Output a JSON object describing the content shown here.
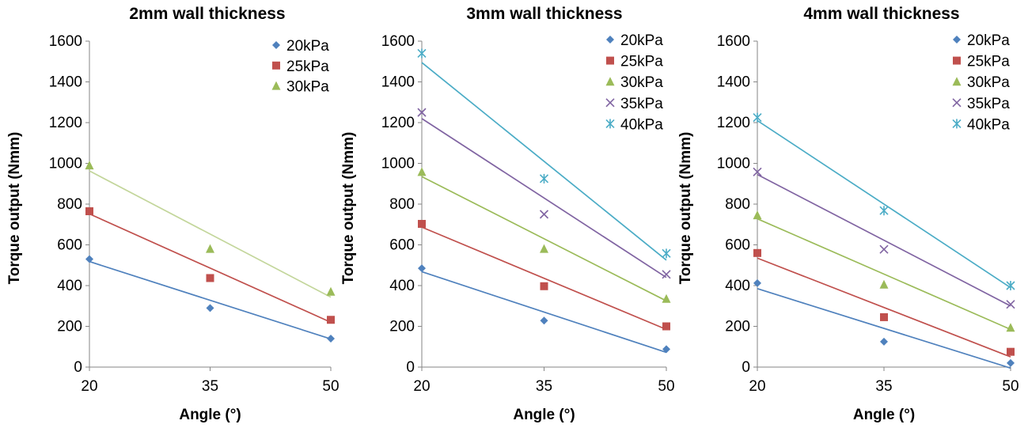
{
  "chart_data": [
    {
      "type": "scatter",
      "title": "2mm wall thickness",
      "xlabel": "Angle (°)",
      "ylabel": "Torque output (Nmm)",
      "x": [
        20,
        35,
        50
      ],
      "xticks": [
        "20",
        "35",
        "50"
      ],
      "xlim": [
        20,
        50
      ],
      "ylim": [
        0,
        1600
      ],
      "yticks": [
        "0",
        "200",
        "400",
        "600",
        "800",
        "1000",
        "1200",
        "1400",
        "1600"
      ],
      "grid": false,
      "legend": "top-right",
      "trendlines": true,
      "series": [
        {
          "name": "20kPa",
          "values": [
            530,
            290,
            140
          ],
          "color": "#4F81BD",
          "marker": "diamond",
          "trend": [
            518,
            328,
            138
          ],
          "trend_color": "#4F81BD"
        },
        {
          "name": "25kPa",
          "values": [
            765,
            437,
            232
          ],
          "color": "#C0504D",
          "marker": "square",
          "trend": [
            752,
            486,
            220
          ],
          "trend_color": "#C0504D"
        },
        {
          "name": "30kPa",
          "values": [
            990,
            580,
            370
          ],
          "color": "#9BBB59",
          "marker": "triangle",
          "trend": [
            963,
            653,
            343
          ],
          "trend_color": "#C3D69B"
        }
      ]
    },
    {
      "type": "scatter",
      "title": "3mm wall thickness",
      "xlabel": "Angle (°)",
      "ylabel": "Torque output (Nmm)",
      "x": [
        20,
        35,
        50
      ],
      "xticks": [
        "20",
        "35",
        "50"
      ],
      "xlim": [
        20,
        50
      ],
      "ylim": [
        0,
        1600
      ],
      "yticks": [
        "0",
        "200",
        "400",
        "600",
        "800",
        "1000",
        "1200",
        "1400",
        "1600"
      ],
      "grid": false,
      "legend": "top-right",
      "trendlines": true,
      "series": [
        {
          "name": "20kPa",
          "values": [
            485,
            228,
            88
          ],
          "color": "#4F81BD",
          "marker": "diamond",
          "trend": [
            468,
            270,
            72
          ],
          "trend_color": "#4F81BD"
        },
        {
          "name": "25kPa",
          "values": [
            703,
            397,
            200
          ],
          "color": "#C0504D",
          "marker": "square",
          "trend": [
            687,
            436,
            185
          ],
          "trend_color": "#C0504D"
        },
        {
          "name": "30kPa",
          "values": [
            958,
            580,
            335
          ],
          "color": "#9BBB59",
          "marker": "triangle",
          "trend": [
            935,
            625,
            325
          ],
          "trend_color": "#9BBB59"
        },
        {
          "name": "35kPa",
          "values": [
            1250,
            750,
            455
          ],
          "color": "#8064A2",
          "marker": "x",
          "trend": [
            1220,
            835,
            440
          ],
          "trend_color": "#8064A2"
        },
        {
          "name": "40kPa",
          "values": [
            1540,
            925,
            558
          ],
          "color": "#4BACC6",
          "marker": "star",
          "trend": [
            1495,
            1020,
            525
          ],
          "trend_color": "#4BACC6"
        }
      ]
    },
    {
      "type": "scatter",
      "title": "4mm wall thickness",
      "xlabel": "Angle (°)",
      "ylabel": "Torque output (Nmm)",
      "x": [
        20,
        35,
        50
      ],
      "xticks": [
        "20",
        "35",
        "50"
      ],
      "xlim": [
        20,
        50
      ],
      "ylim": [
        0,
        1600
      ],
      "yticks": [
        "0",
        "200",
        "400",
        "600",
        "800",
        "1000",
        "1200",
        "1400",
        "1600"
      ],
      "grid": false,
      "legend": "top-right",
      "trendlines": true,
      "series": [
        {
          "name": "20kPa",
          "values": [
            412,
            125,
            20
          ],
          "color": "#4F81BD",
          "marker": "diamond",
          "trend": [
            385,
            190,
            -5
          ],
          "trend_color": "#4F81BD"
        },
        {
          "name": "25kPa",
          "values": [
            560,
            245,
            75
          ],
          "color": "#C0504D",
          "marker": "square",
          "trend": [
            535,
            295,
            50
          ],
          "trend_color": "#C0504D"
        },
        {
          "name": "30kPa",
          "values": [
            745,
            405,
            193
          ],
          "color": "#9BBB59",
          "marker": "triangle",
          "trend": [
            728,
            455,
            185
          ],
          "trend_color": "#9BBB59"
        },
        {
          "name": "35kPa",
          "values": [
            958,
            578,
            308
          ],
          "color": "#8064A2",
          "marker": "x",
          "trend": [
            945,
            625,
            300
          ],
          "trend_color": "#8064A2"
        },
        {
          "name": "40kPa",
          "values": [
            1225,
            768,
            400
          ],
          "color": "#4BACC6",
          "marker": "star",
          "trend": [
            1210,
            800,
            390
          ],
          "trend_color": "#4BACC6"
        }
      ]
    }
  ]
}
